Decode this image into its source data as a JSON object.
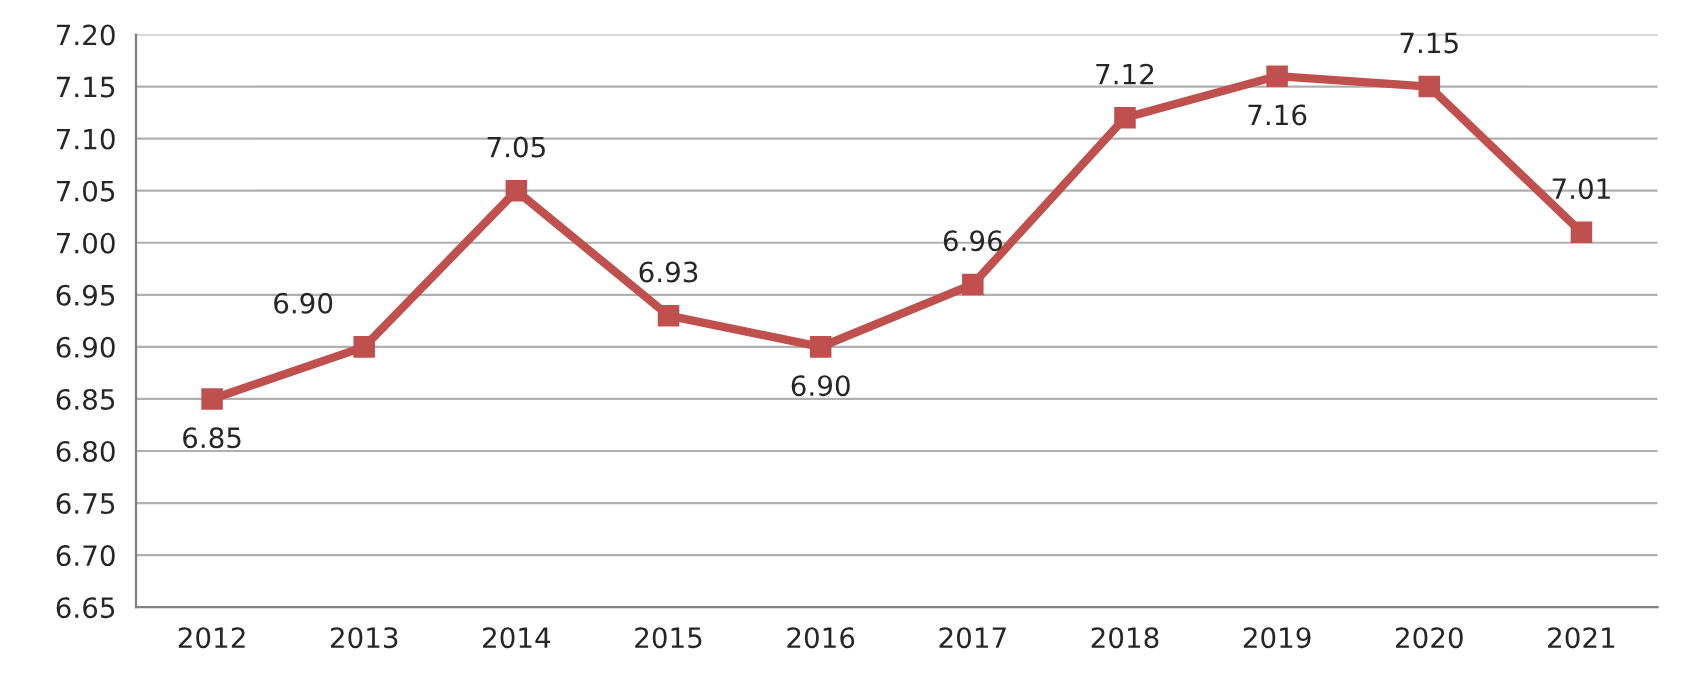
{
  "chart_data": {
    "type": "line",
    "categories": [
      "2012",
      "2013",
      "2014",
      "2015",
      "2016",
      "2017",
      "2018",
      "2019",
      "2020",
      "2021"
    ],
    "series": [
      {
        "color": "#c0504d",
        "values": [
          6.85,
          6.9,
          7.05,
          6.93,
          6.9,
          6.96,
          7.12,
          7.16,
          7.15,
          7.01
        ],
        "value_labels": [
          "6.85",
          "6.90",
          "7.05",
          "6.93",
          "6.90",
          "6.96",
          "7.12",
          "7.16",
          "7.15",
          "7.01"
        ]
      }
    ],
    "ylim": [
      6.65,
      7.2
    ],
    "yticks": [
      {
        "value": 6.65,
        "label": "6.65"
      },
      {
        "value": 6.7,
        "label": "6.70"
      },
      {
        "value": 6.75,
        "label": "6.75"
      },
      {
        "value": 6.8,
        "label": "6.80"
      },
      {
        "value": 6.85,
        "label": "6.85"
      },
      {
        "value": 6.9,
        "label": "6.90"
      },
      {
        "value": 6.95,
        "label": "6.95"
      },
      {
        "value": 7.0,
        "label": "7.00"
      },
      {
        "value": 7.05,
        "label": "7.05"
      },
      {
        "value": 7.1,
        "label": "7.10"
      },
      {
        "value": 7.15,
        "label": "7.15"
      },
      {
        "value": 7.2,
        "label": "7.20"
      }
    ],
    "grid": "y",
    "marker": "square",
    "line_style": "solid",
    "legend": false
  }
}
